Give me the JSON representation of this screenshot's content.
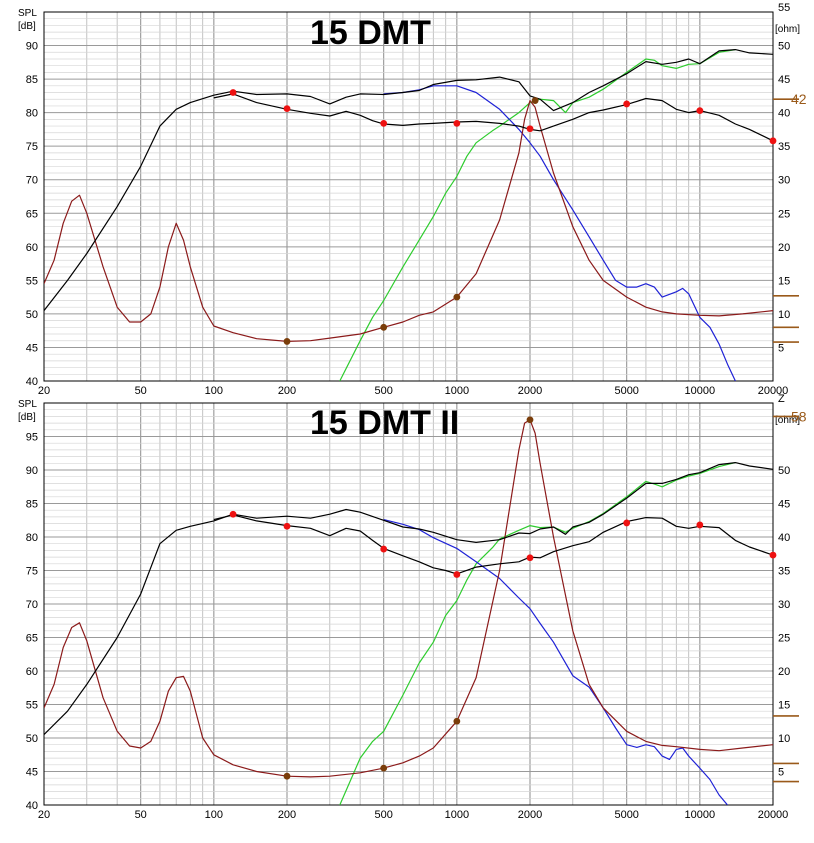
{
  "colors": {
    "grid": "#b4b4b4",
    "spl_onaxis": "#000000",
    "spl_offaxis": "#000000",
    "impedance": "#8b1a1a",
    "blue": "#1f22d6",
    "green": "#2ecc2e",
    "marker_red": "#ee1111",
    "marker_brown": "#7a3d0a",
    "z_annotation": "#9a5a1a"
  },
  "chart_data": [
    {
      "type": "line",
      "title": "15 DMT",
      "ylabel_left": [
        "SPL",
        "[dB]"
      ],
      "ylabel_right": "[ohm]",
      "right_top_label": "55",
      "z_annotation": "42",
      "x_ticks": [
        "20",
        "50",
        "100",
        "200",
        "500",
        "1000",
        "2000",
        "5000",
        "10000",
        "20000"
      ],
      "x_tick_values": [
        20,
        50,
        100,
        200,
        500,
        1000,
        2000,
        5000,
        10000,
        20000
      ],
      "y_ticks_left": [
        "90",
        "85",
        "80",
        "75",
        "70",
        "65",
        "60",
        "55",
        "50",
        "45",
        "40"
      ],
      "y_ticks_right": [
        "50",
        "45",
        "40",
        "35",
        "30",
        "25",
        "20",
        "15",
        "10",
        "5"
      ],
      "xlim": [
        20,
        20000
      ],
      "ylim_left": [
        40,
        95
      ],
      "ylim_right": [
        0,
        55
      ],
      "xscale": "log",
      "grid": true,
      "series": [
        {
          "key": "spl_onaxis",
          "x": [
            20,
            25,
            30,
            40,
            50,
            60,
            70,
            80,
            100,
            120,
            150,
            200,
            250,
            300,
            350,
            400,
            500,
            600,
            700,
            800,
            1000,
            1200,
            1500,
            1800,
            2000,
            2200,
            2500,
            3000,
            3500,
            4000,
            5000,
            6000,
            7000,
            8000,
            9000,
            10000,
            12000,
            14000,
            16000,
            20000
          ],
          "y": [
            50.5,
            55,
            59,
            66,
            72,
            78,
            80.5,
            81.5,
            82.6,
            83.2,
            82.7,
            82.8,
            82.4,
            81.3,
            82.3,
            82.8,
            82.7,
            83,
            83.3,
            84.2,
            84.8,
            84.9,
            85.3,
            84.6,
            82.5,
            82,
            80.3,
            81.5,
            83,
            84,
            85.8,
            87.6,
            87.2,
            87.5,
            88,
            87.3,
            89.2,
            89.4,
            88.9,
            88.7
          ]
        },
        {
          "key": "spl_offaxis",
          "x": [
            100,
            120,
            150,
            200,
            250,
            300,
            350,
            400,
            450,
            500,
            600,
            700,
            800,
            1000,
            1200,
            1500,
            1800,
            2000,
            2200,
            2500,
            3000,
            3500,
            4000,
            5000,
            6000,
            7000,
            8000,
            9000,
            10000,
            12000,
            14000,
            16000,
            20000
          ],
          "y": [
            82.2,
            82.8,
            81.5,
            80.5,
            79.9,
            79.5,
            80.2,
            79.6,
            78.8,
            78.3,
            78.1,
            78.3,
            78.4,
            78.6,
            78.7,
            78.4,
            78,
            77.5,
            77.3,
            78,
            79,
            80,
            80.4,
            81.2,
            82.1,
            81.8,
            80.5,
            80,
            80.3,
            79.6,
            78.3,
            77.5,
            75.8
          ]
        },
        {
          "key": "impedance",
          "x": [
            20,
            22,
            24,
            26,
            28,
            30,
            35,
            40,
            45,
            50,
            55,
            60,
            65,
            70,
            75,
            80,
            90,
            100,
            120,
            150,
            200,
            250,
            300,
            400,
            500,
            600,
            700,
            800,
            1000,
            1200,
            1500,
            1800,
            1900,
            2000,
            2100,
            2200,
            2500,
            3000,
            3500,
            4000,
            5000,
            6000,
            7000,
            8000,
            10000,
            12000,
            15000,
            20000
          ],
          "y": [
            14.5,
            18,
            23.5,
            26.8,
            27.7,
            25,
            17,
            11,
            8.8,
            8.8,
            10,
            14,
            20,
            23.5,
            21,
            17,
            11,
            8.2,
            7.2,
            6.3,
            5.9,
            6,
            6.4,
            7,
            8,
            8.8,
            9.8,
            10.3,
            12.5,
            16,
            24,
            34,
            39,
            41.8,
            40.8,
            38,
            31,
            23,
            18,
            15,
            12.5,
            11,
            10.3,
            10,
            9.8,
            9.7,
            10,
            10.5
          ]
        },
        {
          "key": "blue",
          "x": [
            500,
            600,
            700,
            800,
            1000,
            1200,
            1500,
            1800,
            2000,
            2200,
            2500,
            3000,
            3500,
            4000,
            4500,
            5000,
            5500,
            6000,
            6500,
            7000,
            8000,
            8500,
            9000,
            10000,
            11000,
            12000,
            13000,
            14000
          ],
          "y": [
            82.8,
            83,
            83.4,
            84,
            84,
            83,
            80.5,
            77.5,
            75.5,
            73.5,
            70,
            65.5,
            61.5,
            58,
            55,
            54,
            54,
            54.5,
            54,
            52.5,
            53.3,
            53.8,
            53,
            49.5,
            48,
            45.5,
            42.5,
            40
          ]
        },
        {
          "key": "green",
          "x": [
            330,
            400,
            450,
            500,
            600,
            700,
            800,
            900,
            1000,
            1100,
            1200,
            1400,
            1500,
            1800,
            2000,
            2200,
            2500,
            2800,
            3000,
            3500,
            4000,
            5000,
            6000,
            6500,
            7000,
            8000,
            9000,
            10000,
            12000,
            14000
          ],
          "y": [
            40,
            46,
            49.5,
            52,
            57,
            61,
            64.5,
            68,
            70.5,
            73.5,
            75.5,
            77.3,
            78,
            80,
            81.5,
            82,
            81.8,
            80,
            81.5,
            82.3,
            83.5,
            86,
            88,
            87.8,
            87,
            86.6,
            87.2,
            87.3,
            89,
            89.4
          ]
        }
      ],
      "markers_red": {
        "x": [
          120,
          200,
          500,
          1000,
          2000,
          5000,
          10000,
          20000
        ],
        "y": [
          83,
          80.6,
          78.4,
          78.4,
          77.6,
          81.3,
          80.3,
          75.8
        ]
      },
      "markers_brown": {
        "x": [
          200,
          500,
          1000,
          2100
        ],
        "y": [
          5.9,
          8,
          12.5,
          41.8
        ]
      },
      "z_levels": [
        12.7,
        8,
        5.8,
        42
      ]
    },
    {
      "type": "line",
      "title": "15 DMT II",
      "ylabel_left": [
        "SPL",
        "[dB]"
      ],
      "ylabel_right": "[ohm]",
      "right_top_label": "Z",
      "z_annotation": "58",
      "x_ticks": [
        "20",
        "50",
        "100",
        "200",
        "500",
        "1000",
        "2000",
        "5000",
        "10000",
        "20000"
      ],
      "x_tick_values": [
        20,
        50,
        100,
        200,
        500,
        1000,
        2000,
        5000,
        10000,
        20000
      ],
      "y_ticks_left": [
        "95",
        "90",
        "85",
        "80",
        "75",
        "70",
        "65",
        "60",
        "55",
        "50",
        "45",
        "40"
      ],
      "y_ticks_right": [
        "50",
        "45",
        "40",
        "35",
        "30",
        "25",
        "20",
        "15",
        "10",
        "5"
      ],
      "xlim": [
        20,
        20000
      ],
      "ylim_left": [
        40,
        100
      ],
      "ylim_right": [
        0,
        60
      ],
      "xscale": "log",
      "grid": true,
      "series": [
        {
          "key": "spl_onaxis",
          "x": [
            20,
            25,
            30,
            40,
            50,
            60,
            70,
            80,
            100,
            120,
            150,
            200,
            250,
            300,
            350,
            400,
            500,
            600,
            700,
            800,
            1000,
            1200,
            1500,
            1800,
            2000,
            2200,
            2500,
            2800,
            3000,
            3500,
            4000,
            5000,
            6000,
            7000,
            8000,
            9000,
            10000,
            12000,
            14000,
            16000,
            20000
          ],
          "y": [
            50.5,
            54,
            58,
            65,
            71.5,
            79,
            81,
            81.6,
            82.4,
            83.4,
            82.8,
            83.1,
            82.8,
            83.4,
            84.1,
            83.7,
            82.5,
            81.5,
            81.2,
            80.7,
            79.6,
            79.2,
            79.6,
            80.6,
            80.5,
            81.2,
            81.5,
            80.4,
            81.5,
            82.2,
            83.4,
            85.8,
            88,
            88,
            88.6,
            89.3,
            89.6,
            90.8,
            91.1,
            90.6,
            90.1
          ]
        },
        {
          "key": "spl_offaxis",
          "x": [
            100,
            120,
            150,
            200,
            250,
            300,
            350,
            400,
            450,
            500,
            600,
            700,
            800,
            900,
            1000,
            1200,
            1500,
            1800,
            2000,
            2200,
            2500,
            3000,
            3500,
            4000,
            5000,
            6000,
            7000,
            8000,
            9000,
            10000,
            12000,
            14000,
            16000,
            20000
          ],
          "y": [
            82.6,
            83.3,
            82.4,
            81.7,
            81.3,
            80.2,
            81.3,
            80.9,
            79.5,
            78.3,
            77.2,
            76.3,
            75.4,
            75,
            74.5,
            75.5,
            76,
            76.3,
            77,
            76.9,
            77.8,
            78.7,
            79.3,
            80.7,
            82.3,
            82.9,
            82.8,
            81.6,
            81.3,
            81.6,
            81.4,
            79.5,
            78.5,
            77.3
          ]
        },
        {
          "key": "impedance",
          "x": [
            20,
            22,
            24,
            26,
            28,
            30,
            35,
            40,
            45,
            50,
            55,
            60,
            65,
            70,
            75,
            80,
            90,
            100,
            120,
            150,
            200,
            250,
            300,
            400,
            500,
            600,
            700,
            800,
            1000,
            1200,
            1500,
            1800,
            1900,
            2000,
            2100,
            2200,
            2500,
            3000,
            3500,
            4000,
            5000,
            6000,
            7000,
            8000,
            10000,
            12000,
            15000,
            20000
          ],
          "y": [
            14.5,
            18,
            23.5,
            26.5,
            27.2,
            24.5,
            16,
            11,
            8.8,
            8.5,
            9.5,
            12.5,
            17,
            19,
            19.2,
            17,
            10,
            7.5,
            6,
            5,
            4.3,
            4.2,
            4.3,
            4.8,
            5.5,
            6.3,
            7.3,
            8.5,
            12.5,
            19,
            35,
            53,
            57,
            57.5,
            55.5,
            51,
            40,
            26,
            18,
            14.5,
            11,
            9.5,
            8.9,
            8.7,
            8.3,
            8.1,
            8.5,
            9
          ]
        },
        {
          "key": "blue",
          "x": [
            500,
            600,
            700,
            800,
            1000,
            1200,
            1500,
            1800,
            2000,
            2200,
            2500,
            3000,
            3500,
            4000,
            4500,
            5000,
            5500,
            6000,
            6500,
            7000,
            7500,
            8000,
            8500,
            9000,
            10000,
            11000,
            12000,
            13000
          ],
          "y": [
            82.6,
            81.9,
            81.1,
            79.9,
            78.3,
            76.3,
            73.8,
            70.9,
            69.3,
            67.1,
            64.3,
            59.3,
            57.6,
            54.5,
            51.5,
            49,
            48.6,
            49,
            48.7,
            47.3,
            46.8,
            48.3,
            48.5,
            47.3,
            45.5,
            43.8,
            41.5,
            40
          ]
        },
        {
          "key": "green",
          "x": [
            330,
            400,
            450,
            500,
            600,
            700,
            800,
            900,
            1000,
            1100,
            1200,
            1400,
            1500,
            1800,
            2000,
            2200,
            2500,
            2800,
            3000,
            3500,
            4000,
            5000,
            6000,
            6500,
            7000,
            8000,
            9000,
            10000,
            12000,
            14000
          ],
          "y": [
            40,
            47,
            49.5,
            51,
            56.4,
            61.2,
            64.3,
            68.3,
            70.5,
            73.6,
            76,
            78.4,
            79.7,
            81,
            81.7,
            81.4,
            81.5,
            80.7,
            81.3,
            82.3,
            83.5,
            86,
            88.3,
            87.9,
            87.5,
            88.5,
            89.1,
            89.5,
            90.5,
            91.1
          ]
        }
      ],
      "markers_red": {
        "x": [
          120,
          200,
          500,
          1000,
          2000,
          5000,
          10000,
          20000
        ],
        "y": [
          83.4,
          81.6,
          78.2,
          74.4,
          76.9,
          82.1,
          81.8,
          77.3
        ]
      },
      "markers_brown": {
        "x": [
          200,
          500,
          1000,
          2000
        ],
        "y": [
          4.3,
          5.5,
          12.5,
          57.5
        ]
      },
      "z_levels": [
        13.3,
        6.2,
        3.5,
        58
      ]
    }
  ]
}
